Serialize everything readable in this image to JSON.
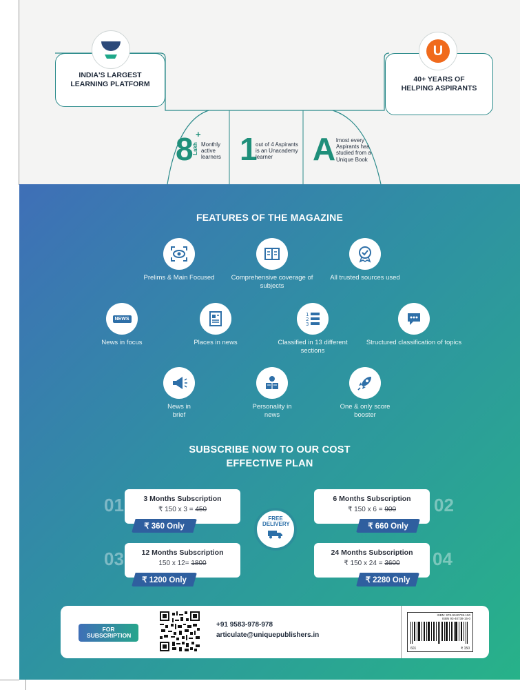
{
  "top": {
    "left_card": "INDIA'S LARGEST LEARNING PLATFORM",
    "right_card": "40+ YEARS OF HELPING ASPIRANTS",
    "right_logo_letter": "U",
    "stats": [
      {
        "big": "8",
        "sup": "+",
        "vert": "Lakh",
        "text": "Monthly active learners"
      },
      {
        "big": "1",
        "text": "out of 4 Aspirants is an Unacademy learner"
      },
      {
        "big": "A",
        "text": "lmost every Aspirants has studied from a Unique Book"
      }
    ]
  },
  "features": {
    "heading": "FEATURES OF THE MAGAZINE",
    "items": [
      {
        "label": "Prelims & Main Focused",
        "icon": "eye-focus-icon"
      },
      {
        "label": "Comprehensive coverage of subjects",
        "icon": "book-icon"
      },
      {
        "label": "All trusted sources used",
        "icon": "badge-icon"
      },
      {
        "label": "News in focus",
        "icon": "news-globe-icon",
        "icon_text": "NEWS"
      },
      {
        "label": "Places in news",
        "icon": "newspaper-icon"
      },
      {
        "label": "Classified in 13 different sections",
        "icon": "numbered-list-icon"
      },
      {
        "label": "Structured classification of topics",
        "icon": "chat-bubble-icon"
      },
      {
        "label": "News in brief",
        "icon": "megaphone-icon"
      },
      {
        "label": "Personality in news",
        "icon": "person-reading-icon"
      },
      {
        "label": "One & only score booster",
        "icon": "rocket-icon"
      }
    ]
  },
  "subscribe": {
    "heading_line1": "SUBSCRIBE NOW TO OUR COST",
    "heading_line2": "EFFECTIVE PLAN",
    "free_delivery": "FREE DELIVERY",
    "plans": [
      {
        "num": "01",
        "title": "3 Months Subscription",
        "calc": "₹ 150 x 3 = ",
        "old": "450",
        "price": "₹ 360 Only"
      },
      {
        "num": "02",
        "title": "6 Months Subscription",
        "calc": "₹ 150 x 6 = ",
        "old": "900",
        "price": "₹ 660 Only"
      },
      {
        "num": "03",
        "title": "12 Months Subscription",
        "calc": "150 x 12= ",
        "old": "1800",
        "price": "₹ 1200 Only"
      },
      {
        "num": "04",
        "title": "24 Months Subscription",
        "calc": "₹ 150 x 24 = ",
        "old": "3600",
        "price": "₹ 2280 Only"
      }
    ]
  },
  "contact": {
    "button": "FOR SUBSCRIPTION",
    "phone": "+91 9583-978-978",
    "email": "articulate@uniquepublishers.in",
    "barcode_isbn": "ISBN: 978-9340738-150",
    "barcode_isbn2": "ISBN 93-40738-15-0",
    "barcode_left": "601",
    "barcode_price": "₹ 150"
  },
  "colors": {
    "teal": "#1f8f7a",
    "blue": "#3f6fb7",
    "green": "#27b289"
  }
}
